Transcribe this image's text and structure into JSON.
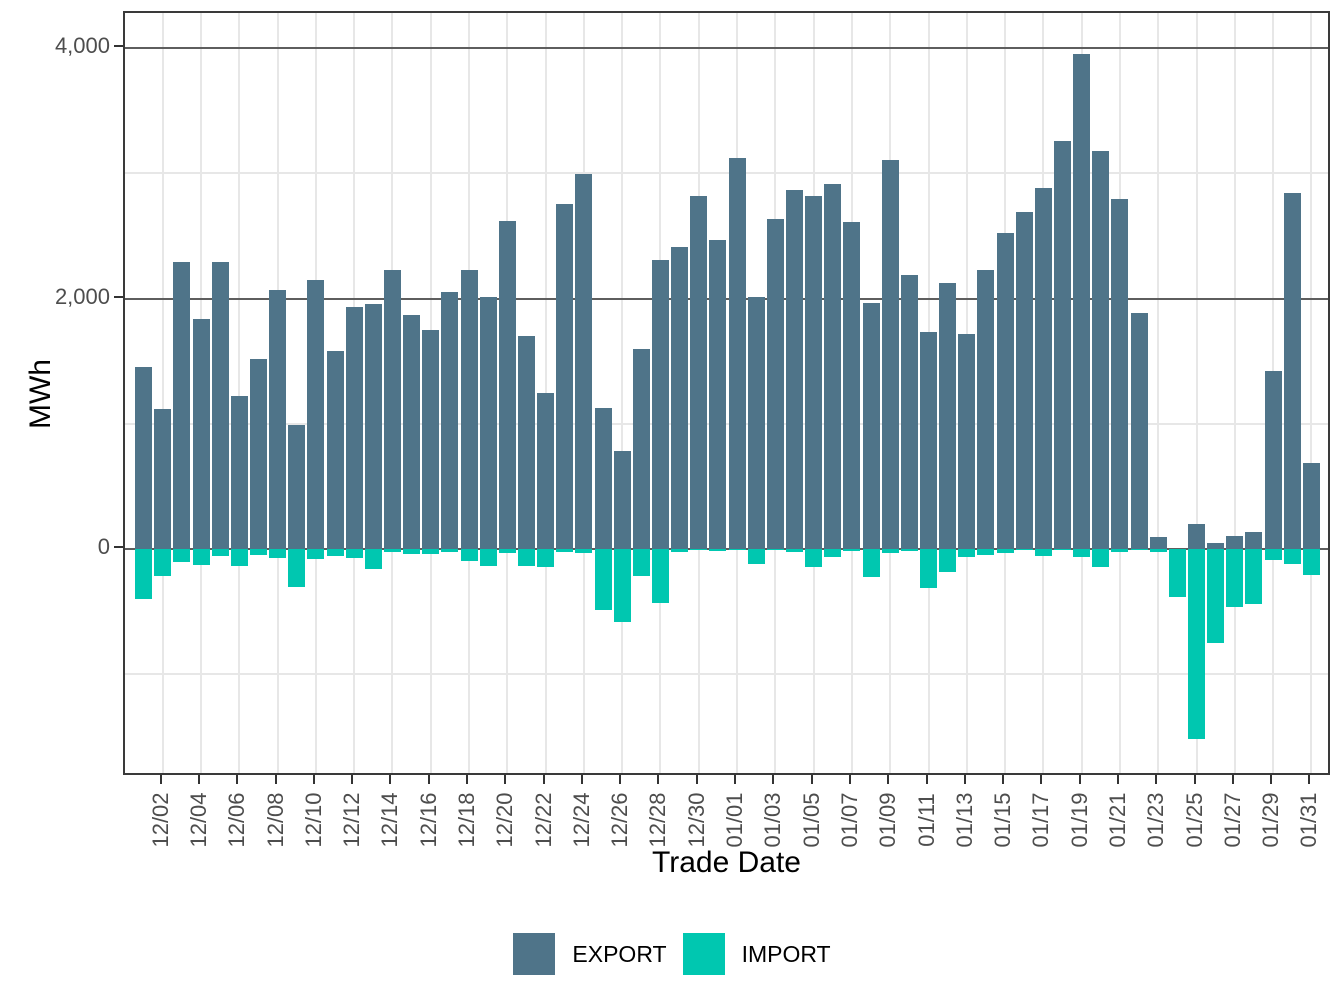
{
  "chart_data": {
    "type": "bar",
    "title": "",
    "xlabel": "Trade Date",
    "ylabel": "MWh",
    "ylim": [
      -1820,
      4280
    ],
    "grid": true,
    "legend_position": "bottom",
    "y_axis": {
      "major_ticks": [
        0,
        2000,
        4000
      ],
      "major_tick_labels": [
        "0",
        "2,000",
        "4,000"
      ],
      "minor_ticks": [
        -1000,
        1000,
        3000
      ]
    },
    "categories": [
      "12/01",
      "12/02",
      "12/03",
      "12/04",
      "12/05",
      "12/06",
      "12/07",
      "12/08",
      "12/09",
      "12/10",
      "12/11",
      "12/12",
      "12/13",
      "12/14",
      "12/15",
      "12/16",
      "12/17",
      "12/18",
      "12/19",
      "12/20",
      "12/21",
      "12/22",
      "12/23",
      "12/24",
      "12/25",
      "12/26",
      "12/27",
      "12/28",
      "12/29",
      "12/30",
      "12/31",
      "01/01",
      "01/02",
      "01/03",
      "01/04",
      "01/05",
      "01/06",
      "01/07",
      "01/08",
      "01/09",
      "01/10",
      "01/11",
      "01/12",
      "01/13",
      "01/14",
      "01/15",
      "01/16",
      "01/17",
      "01/18",
      "01/19",
      "01/20",
      "01/21",
      "01/22",
      "01/23",
      "01/24",
      "01/25",
      "01/26",
      "01/27",
      "01/28",
      "01/29",
      "01/30",
      "01/31"
    ],
    "x_tick_labels": [
      "12/02",
      "12/04",
      "12/06",
      "12/08",
      "12/10",
      "12/12",
      "12/14",
      "12/16",
      "12/18",
      "12/20",
      "12/22",
      "12/24",
      "12/26",
      "12/28",
      "12/30",
      "01/01",
      "01/03",
      "01/05",
      "01/07",
      "01/09",
      "01/11",
      "01/13",
      "01/15",
      "01/17",
      "01/19",
      "01/21",
      "01/23",
      "01/25",
      "01/27",
      "01/29",
      "01/31"
    ],
    "series": [
      {
        "name": "EXPORT",
        "color": "#4f7489",
        "values": [
          1450,
          1115,
          2295,
          1840,
          2295,
          1225,
          1515,
          2065,
          990,
          2145,
          1585,
          1935,
          1960,
          2225,
          1865,
          1745,
          2055,
          2225,
          2010,
          2620,
          1705,
          1245,
          2755,
          2995,
          1130,
          780,
          1600,
          2310,
          2415,
          2815,
          2470,
          3125,
          2010,
          2635,
          2870,
          2820,
          2915,
          2615,
          1965,
          3105,
          2190,
          1735,
          2125,
          1715,
          2225,
          2520,
          2695,
          2885,
          3260,
          3955,
          3180,
          2795,
          1885,
          100,
          0,
          200,
          50,
          105,
          140,
          1420,
          2840,
          690
        ]
      },
      {
        "name": "IMPORT",
        "color": "#00c7b0",
        "values": [
          -395,
          -215,
          -100,
          -130,
          -55,
          -135,
          -45,
          -75,
          -300,
          -80,
          -55,
          -75,
          -160,
          -25,
          -40,
          -40,
          -20,
          -95,
          -135,
          -30,
          -135,
          -145,
          -25,
          -30,
          -490,
          -580,
          -215,
          -430,
          -20,
          -10,
          -15,
          -10,
          -120,
          -10,
          -20,
          -140,
          -65,
          -15,
          -220,
          -35,
          -15,
          -310,
          -180,
          -65,
          -50,
          -35,
          -10,
          -55,
          -10,
          -60,
          -140,
          -20,
          -10,
          -20,
          -385,
          -1520,
          -750,
          -465,
          -440,
          -90,
          -120,
          -205
        ]
      }
    ]
  },
  "axes": {
    "x_title": "Trade Date",
    "y_title": "MWh"
  },
  "legend": {
    "items": [
      {
        "label": "EXPORT",
        "color": "#4f7489"
      },
      {
        "label": "IMPORT",
        "color": "#00c7b0"
      }
    ]
  }
}
